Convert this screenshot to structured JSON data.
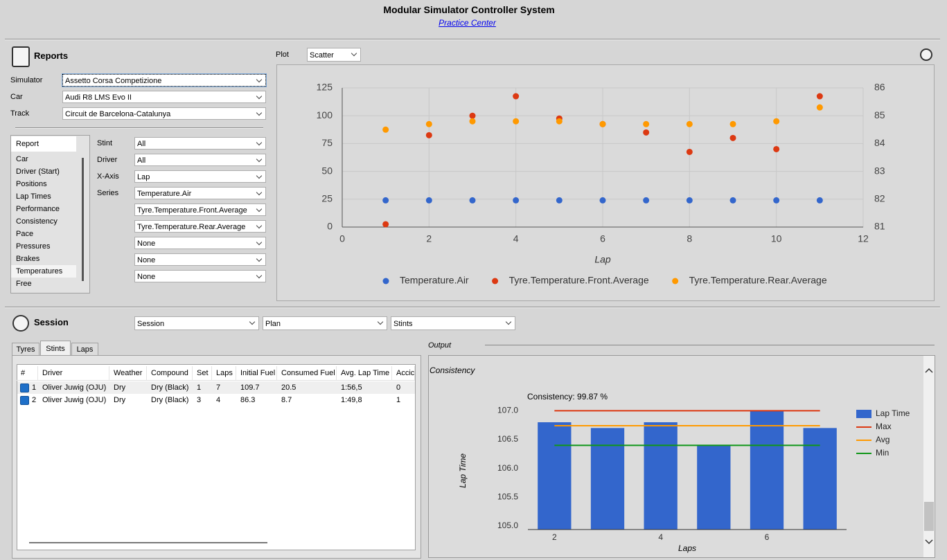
{
  "header": {
    "title": "Modular Simulator Controller System",
    "link": "Practice Center"
  },
  "reports": {
    "title": "Reports",
    "fields": [
      {
        "label": "Simulator",
        "value": "Assetto Corsa Competizione"
      },
      {
        "label": "Car",
        "value": "Audi R8 LMS Evo II"
      },
      {
        "label": "Track",
        "value": "Circuit de Barcelona-Catalunya"
      }
    ],
    "list": {
      "header": "Report",
      "items": [
        "Car",
        "Driver (Start)",
        "Positions",
        "Lap Times",
        "Performance",
        "Consistency",
        "Pace",
        "Pressures",
        "Brakes",
        "Temperatures",
        "Free"
      ],
      "selected": 9
    },
    "filters": [
      {
        "label": "Stint",
        "value": "All"
      },
      {
        "label": "Driver",
        "value": "All"
      },
      {
        "label": "X-Axis",
        "value": "Lap"
      }
    ],
    "series_label": "Series",
    "series": [
      "Temperature.Air",
      "Tyre.Temperature.Front.Average",
      "Tyre.Temperature.Rear.Average",
      "None",
      "None",
      "None"
    ],
    "plot_label": "Plot",
    "plot_type": "Scatter"
  },
  "chart_data": [
    {
      "type": "scatter",
      "xlabel": "Lap",
      "x": [
        1,
        2,
        3,
        4,
        5,
        6,
        7,
        8,
        9,
        10,
        11
      ],
      "xlim": [
        0,
        12
      ],
      "xticks": [
        0,
        2,
        4,
        6,
        8,
        10,
        12
      ],
      "ylim": [
        0,
        125
      ],
      "yticks": [
        0,
        25,
        50,
        75,
        100,
        125
      ],
      "y2lim": [
        81,
        86
      ],
      "y2ticks": [
        81,
        82,
        83,
        84,
        85,
        86
      ],
      "grid": true,
      "legend": "bottom",
      "series": [
        {
          "name": "Temperature.Air",
          "color": "#3366cc",
          "values": [
            24,
            24,
            24,
            24,
            24,
            24,
            24,
            24,
            24,
            24,
            24
          ]
        },
        {
          "name": "Tyre.Temperature.Front.Average",
          "color": "#dc3912",
          "axis": "y2",
          "values": [
            81.1,
            84.3,
            85.0,
            85.7,
            84.9,
            84.7,
            84.4,
            83.7,
            84.2,
            83.8,
            85.7
          ]
        },
        {
          "name": "Tyre.Temperature.Rear.Average",
          "color": "#ff9900",
          "axis": "y2",
          "values": [
            84.5,
            84.7,
            84.8,
            84.8,
            84.8,
            84.7,
            84.7,
            84.7,
            84.7,
            84.8,
            85.3
          ]
        }
      ]
    },
    {
      "type": "bar",
      "title": "Consistency: 99.87 %",
      "xlabel": "Laps",
      "ylabel": "Lap Time",
      "x": [
        2,
        3,
        4,
        5,
        6,
        7
      ],
      "xlim": [
        1.5,
        7.5
      ],
      "xticks": [
        2,
        4,
        6
      ],
      "ylim": [
        104.94,
        107.1
      ],
      "yticks": [
        {
          "value": 105,
          "label": "105.0"
        },
        {
          "value": 105.5,
          "label": "105.5"
        },
        {
          "value": 106,
          "label": "106.0"
        },
        {
          "value": 106.5,
          "label": "106.5"
        },
        {
          "value": 107,
          "label": "107.0"
        }
      ],
      "grid": false,
      "legend": "right",
      "series": [
        {
          "name": "Lap Time",
          "type": "bar",
          "color": "#3366cc",
          "values": [
            106.8,
            106.7,
            106.8,
            106.4,
            107.0,
            106.7
          ]
        },
        {
          "name": "Max",
          "type": "line",
          "color": "#dc3912",
          "values": [
            107.0,
            107.0,
            107.0,
            107.0,
            107.0,
            107.0
          ]
        },
        {
          "name": "Avg",
          "type": "line",
          "color": "#ff9900",
          "values": [
            106.74,
            106.74,
            106.74,
            106.74,
            106.74,
            106.74
          ]
        },
        {
          "name": "Min",
          "type": "line",
          "color": "#109618",
          "values": [
            106.4,
            106.4,
            106.4,
            106.4,
            106.4,
            106.4
          ]
        }
      ]
    }
  ],
  "session": {
    "title": "Session",
    "selects": [
      "Session",
      "Plan",
      "Stints"
    ],
    "tabs": [
      "Tyres",
      "Stints",
      "Laps"
    ],
    "active_tab": 1,
    "table": {
      "columns": [
        "#",
        "Driver",
        "Weather",
        "Compound",
        "Set",
        "Laps",
        "Initial Fuel",
        "Consumed Fuel",
        "Avg. Lap Time",
        "Accic"
      ],
      "rows": [
        [
          1,
          "Oliver Juwig (OJU)",
          "Dry",
          "Dry (Black)",
          1,
          7,
          109.7,
          20.5,
          "1:56,5",
          0
        ],
        [
          2,
          "Oliver Juwig (OJU)",
          "Dry",
          "Dry (Black)",
          3,
          4,
          86.3,
          8.7,
          "1:49,8",
          1
        ]
      ]
    },
    "output_label": "Output",
    "output_title": "Consistency"
  }
}
